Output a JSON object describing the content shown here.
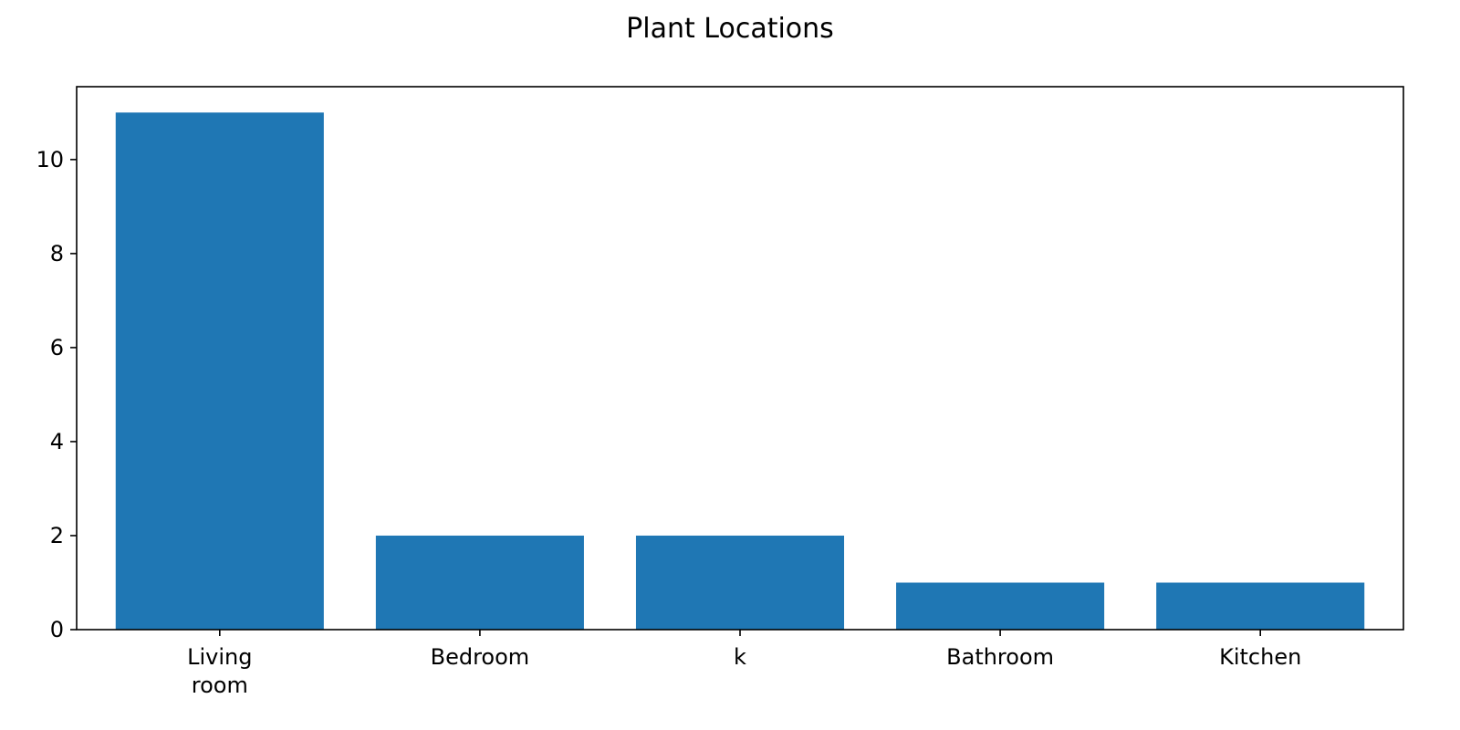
{
  "chart_data": {
    "type": "bar",
    "title": "Plant Locations",
    "xlabel": "",
    "ylabel": "",
    "categories": [
      [
        "Living",
        "room"
      ],
      [
        "Bedroom"
      ],
      [
        "k"
      ],
      [
        "Bathroom"
      ],
      [
        "Kitchen"
      ]
    ],
    "values": [
      11,
      2,
      2,
      1,
      1
    ],
    "ylim": [
      0,
      11.55
    ],
    "yticks": [
      0,
      2,
      4,
      6,
      8,
      10
    ],
    "grid": false,
    "bar_color": "#1f77b4"
  }
}
